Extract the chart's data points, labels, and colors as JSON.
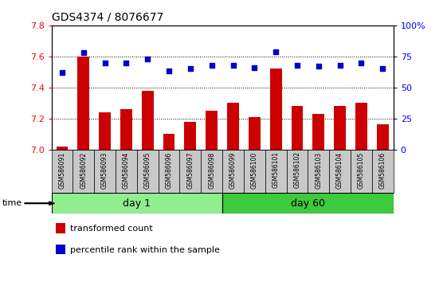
{
  "title": "GDS4374 / 8076677",
  "categories": [
    "GSM586091",
    "GSM586092",
    "GSM586093",
    "GSM586094",
    "GSM586095",
    "GSM586096",
    "GSM586097",
    "GSM586098",
    "GSM586099",
    "GSM586100",
    "GSM586101",
    "GSM586102",
    "GSM586103",
    "GSM586104",
    "GSM586105",
    "GSM586106"
  ],
  "bar_values": [
    7.02,
    7.6,
    7.24,
    7.26,
    7.38,
    7.1,
    7.18,
    7.25,
    7.3,
    7.21,
    7.52,
    7.28,
    7.23,
    7.28,
    7.3,
    7.16
  ],
  "percentile_values": [
    62,
    78,
    70,
    70,
    73,
    63,
    65,
    68,
    68,
    66,
    79,
    68,
    67,
    68,
    70,
    65
  ],
  "bar_color": "#cc0000",
  "dot_color": "#0000cc",
  "ylim_left": [
    7.0,
    7.8
  ],
  "ylim_right": [
    0,
    100
  ],
  "yticks_left": [
    7.0,
    7.2,
    7.4,
    7.6,
    7.8
  ],
  "yticks_right": [
    0,
    25,
    50,
    75,
    100
  ],
  "ytick_labels_right": [
    "0",
    "25",
    "50",
    "75",
    "100%"
  ],
  "group1_label": "day 1",
  "group2_label": "day 60",
  "group1_count": 8,
  "group2_count": 8,
  "time_label": "time",
  "legend_bar_label": "transformed count",
  "legend_dot_label": "percentile rank within the sample",
  "group1_color": "#90ee90",
  "group2_color": "#3dca3d",
  "xlabel_bg_color": "#c8c8c8",
  "bar_bottom": 7.0
}
